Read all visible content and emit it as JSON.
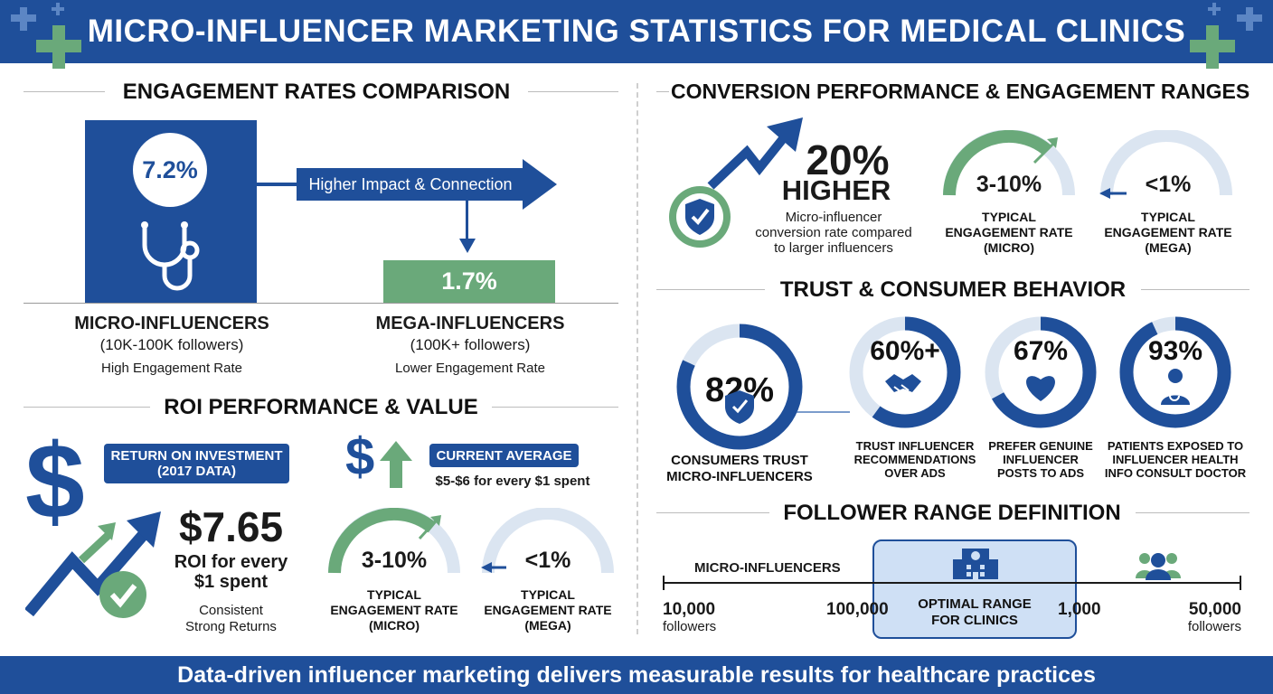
{
  "header": {
    "title": "MICRO-INFLUENCER MARKETING STATISTICS FOR MEDICAL CLINICS"
  },
  "footer": {
    "text": "Data-driven influencer marketing delivers measurable results for healthcare practices"
  },
  "engagement": {
    "title": "ENGAGEMENT RATES COMPARISON",
    "micro_value": "7.2%",
    "mega_value": "1.7%",
    "arrow_label": "Higher Impact & Connection",
    "micro_name": "MICRO-INFLUENCERS",
    "micro_range": "(10K-100K followers)",
    "micro_desc": "High Engagement Rate",
    "mega_name": "MEGA-INFLUENCERS",
    "mega_range": "(100K+ followers)",
    "mega_desc": "Lower Engagement Rate"
  },
  "roi": {
    "title": "ROI PERFORMANCE & VALUE",
    "badge_line1": "RETURN ON INVESTMENT",
    "badge_line2": "(2017 DATA)",
    "value": "$7.65",
    "value_line1": "ROI for every",
    "value_line2": "$1 spent",
    "note_line1": "Consistent",
    "note_line2": "Strong Returns",
    "current_label": "CURRENT AVERAGE",
    "current_value": "$5-$6 for every $1 spent",
    "gauge_micro": {
      "value": "3-10%",
      "line1": "TYPICAL",
      "line2": "ENGAGEMENT RATE",
      "line3": "(MICRO)"
    },
    "gauge_mega": {
      "value": "<1%",
      "line1": "TYPICAL",
      "line2": "ENGAGEMENT RATE",
      "line3": "(MEGA)"
    }
  },
  "conversion": {
    "title": "CONVERSION PERFORMANCE & ENGAGEMENT RANGES",
    "value": "20%",
    "higher": "HIGHER",
    "desc_line1": "Micro-influencer",
    "desc_line2": "conversion rate compared",
    "desc_line3": "to larger influencers",
    "gauge_micro": {
      "value": "3-10%",
      "line1": "TYPICAL",
      "line2": "ENGAGEMENT RATE",
      "line3": "(MICRO)"
    },
    "gauge_mega": {
      "value": "<1%",
      "line1": "TYPICAL",
      "line2": "ENGAGEMENT RATE",
      "line3": "(MEGA)"
    }
  },
  "trust": {
    "title": "TRUST & CONSUMER BEHAVIOR",
    "items": [
      {
        "value": "82%",
        "percent": 82,
        "line1": "CONSUMERS TRUST",
        "line2": "MICRO-INFLUENCERS",
        "line3": "",
        "icon": "shield-check-icon"
      },
      {
        "value": "60%+",
        "percent": 60,
        "line1": "TRUST INFLUENCER",
        "line2": "RECOMMENDATIONS",
        "line3": "OVER ADS",
        "icon": "handshake-icon"
      },
      {
        "value": "67%",
        "percent": 67,
        "line1": "PREFER GENUINE",
        "line2": "INFLUENCER",
        "line3": "POSTS TO ADS",
        "icon": "heart-icon"
      },
      {
        "value": "93%",
        "percent": 93,
        "line1": "PATIENTS EXPOSED TO",
        "line2": "INFLUENCER HEALTH",
        "line3": "INFO CONSULT DOCTOR",
        "icon": "doctor-icon"
      }
    ]
  },
  "follower": {
    "title": "FOLLOWER RANGE DEFINITION",
    "micro_label": "MICRO-INFLUENCERS",
    "tick1_value": "10,000",
    "tick1_unit": "followers",
    "tick2_value": "100,000",
    "optimal_line1": "OPTIMAL RANGE",
    "optimal_line2": "FOR CLINICS",
    "tick3_value": "1,000",
    "tick4_value": "50,000",
    "tick4_unit": "followers"
  },
  "colors": {
    "primary": "#1f4f9a",
    "green": "#6aa97a",
    "light_blue": "#dbe5f1"
  }
}
